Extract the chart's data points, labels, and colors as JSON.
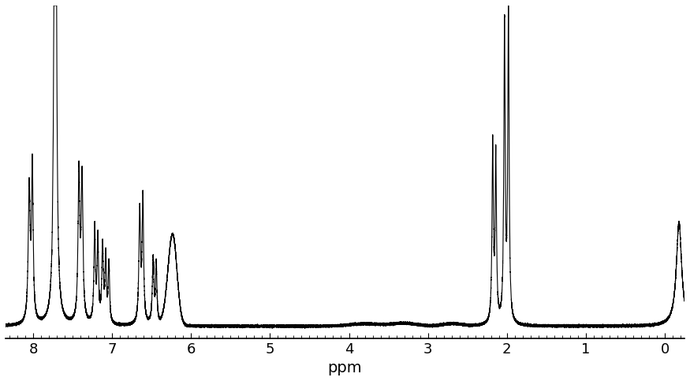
{
  "title": "",
  "xlabel": "ppm",
  "xlim": [
    8.35,
    -0.25
  ],
  "ylim": [
    -0.04,
    1.08
  ],
  "background_color": "#ffffff",
  "line_color": "#000000",
  "line_width": 0.8,
  "xlabel_fontsize": 14,
  "xtick_fontsize": 13,
  "tick_direction": "in",
  "xticks": [
    8,
    7,
    6,
    5,
    4,
    3,
    2,
    1,
    0
  ]
}
